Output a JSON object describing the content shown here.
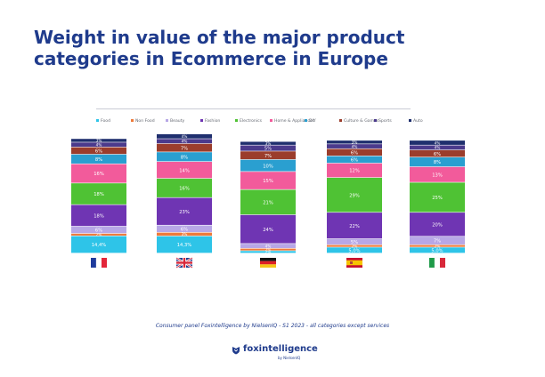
{
  "title": "Weight in value of the major product categories in Ecommerce in Europe",
  "footer_note": "Consumer panel Foxintelligence by NielsenIQ - S1 2023 - all categories except services",
  "logo": {
    "name": "foxintelligence",
    "sub": "by NielsenIQ"
  },
  "colors": {
    "Food": "#2ec4e8",
    "Non Food": "#ee7a3a",
    "Beauty": "#b7a7e6",
    "Fashion": "#6f35b3",
    "Electronics": "#4fc234",
    "Home & Appliances": "#f25b9b",
    "DIY": "#2a9fd0",
    "Culture & Games": "#9b3d2c",
    "Sports": "#4b3a8c",
    "Auto": "#1f2f6e"
  },
  "chart_data": {
    "type": "bar",
    "stacked": true,
    "categories": [
      "France",
      "United Kingdom",
      "Germany",
      "Spain",
      "Italy"
    ],
    "category_icons": [
      "flag-france-icon",
      "flag-uk-icon",
      "flag-germany-icon",
      "flag-spain-icon",
      "flag-italy-icon"
    ],
    "legend_position": "top",
    "ylim": [
      0,
      100
    ],
    "series": [
      {
        "name": "Food",
        "values": [
          14.4,
          14.3,
          2,
          5,
          5
        ],
        "labels": [
          "14,4%",
          "14,3%",
          "2%",
          "5,0%",
          "5,0%"
        ]
      },
      {
        "name": "Non Food",
        "values": [
          2,
          3,
          2,
          2,
          2
        ],
        "labels": [
          "2%",
          "3%",
          "2%",
          "2%",
          "2%"
        ]
      },
      {
        "name": "Beauty",
        "values": [
          6,
          6,
          4,
          5,
          7
        ],
        "labels": [
          "6%",
          "6%",
          "4%",
          "5%",
          "7%"
        ]
      },
      {
        "name": "Fashion",
        "values": [
          18,
          23,
          24,
          22,
          20
        ],
        "labels": [
          "18%",
          "23%",
          "24%",
          "22%",
          "20%"
        ]
      },
      {
        "name": "Electronics",
        "values": [
          18,
          16,
          21,
          29,
          25
        ],
        "labels": [
          "18%",
          "16%",
          "21%",
          "29%",
          "25%"
        ]
      },
      {
        "name": "Home & Appliances",
        "values": [
          16,
          14,
          15,
          12,
          13
        ],
        "labels": [
          "16%",
          "14%",
          "15%",
          "12%",
          "13%"
        ]
      },
      {
        "name": "DIY",
        "values": [
          8,
          8,
          10,
          6,
          8
        ],
        "labels": [
          "8%",
          "8%",
          "10%",
          "6%",
          "8%"
        ]
      },
      {
        "name": "Culture & Games",
        "values": [
          6,
          7,
          7,
          6,
          6
        ],
        "labels": [
          "6%",
          "7%",
          "7%",
          "6%",
          "6%"
        ]
      },
      {
        "name": "Sports",
        "values": [
          4,
          4,
          5,
          4,
          4
        ],
        "labels": [
          "4%",
          "4%",
          "5%",
          "4%",
          "4%"
        ]
      },
      {
        "name": "Auto",
        "values": [
          3,
          4,
          3,
          3,
          4
        ],
        "labels": [
          "3%",
          "4%",
          "3%",
          "3%",
          "4%"
        ]
      }
    ]
  }
}
